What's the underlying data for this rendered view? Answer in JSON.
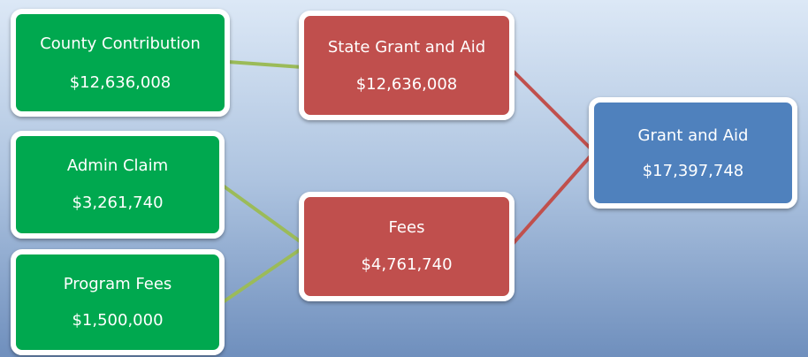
{
  "nodes": [
    {
      "label": "County Contribution",
      "amount": "$12,636,008"
    },
    {
      "label": "Admin Claim",
      "amount": "$3,261,740"
    },
    {
      "label": "Program Fees",
      "amount": "$1,500,000"
    },
    {
      "label": "State Grant and Aid",
      "amount": "$12,636,008"
    },
    {
      "label": "Fees",
      "amount": "$4,761,740"
    },
    {
      "label": "Grant and Aid",
      "amount": "$17,397,748"
    }
  ]
}
